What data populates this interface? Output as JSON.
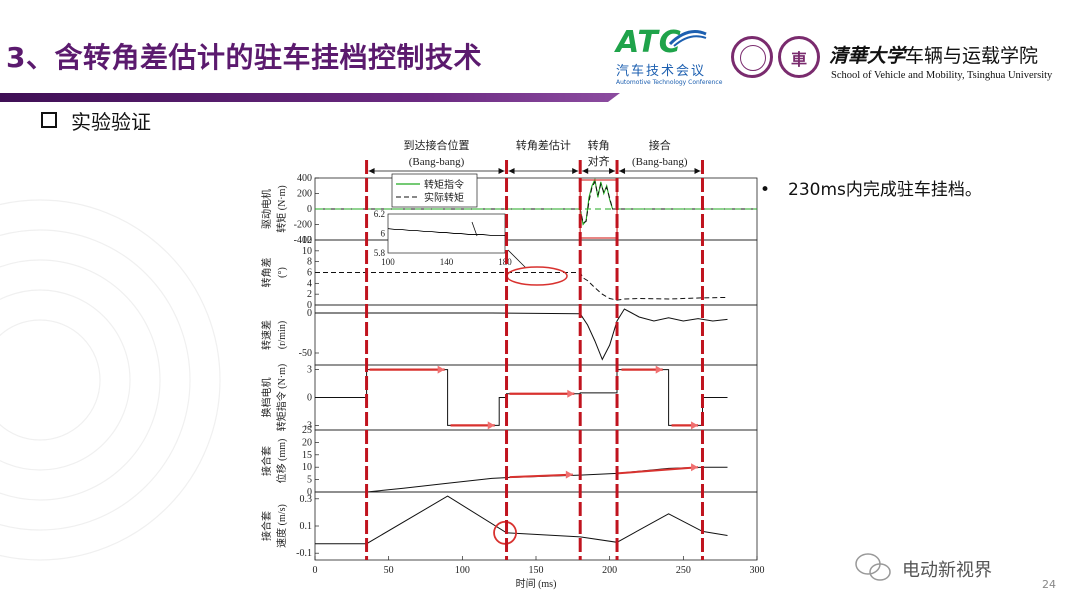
{
  "slide": {
    "title": "3、含转角差估计的驻车挂档控制技术",
    "section": "实验验证",
    "bullet": "230ms内完成驻车挂档。",
    "page_number": "24",
    "watermark": "电动新视界"
  },
  "logos": {
    "atc_name": "ATC",
    "atc_cn": "汽车技术会议",
    "atc_en": "Automotive Technology Conference",
    "tsinghua_calligraphy": "清華大学",
    "tsinghua_school_cn": "车辆与运载学院",
    "tsinghua_school_en": "School of Vehicle and Mobility, Tsinghua University",
    "seal_glyph": "車"
  },
  "colors": {
    "title": "#5b1a6e",
    "title_bar": "#4a1563",
    "phase_line": "#c0131e",
    "command_green": "#22aa22",
    "annotation_red": "#d8322f",
    "annotation_fill": "#f07070"
  },
  "chart_data": {
    "type": "line",
    "xlabel": "时间 (ms)",
    "xlim": [
      0,
      300
    ],
    "x_ticks": [
      0,
      50,
      100,
      150,
      200,
      250,
      300
    ],
    "phase_boundaries": [
      35,
      130,
      180,
      205,
      263
    ],
    "phases": [
      {
        "label": "到达接合位置",
        "sub": "(Bang-bang)",
        "start": 35,
        "end": 130
      },
      {
        "label": "转角差估计",
        "sub": "",
        "start": 130,
        "end": 180
      },
      {
        "label": "转角",
        "sub": "对齐",
        "start": 180,
        "end": 205
      },
      {
        "label": "接合",
        "sub": "(Bang-bang)",
        "start": 205,
        "end": 263
      }
    ],
    "subplots": [
      {
        "name": "drive-torque",
        "ylabel": [
          "驱动电机",
          "转矩 (N·m)"
        ],
        "ylim": [
          -400,
          400
        ],
        "yticks": [
          {
            "v": 400,
            "t": "400"
          },
          {
            "v": 200,
            "t": "200"
          },
          {
            "v": 0,
            "t": "0"
          },
          {
            "v": -200,
            "t": "-200"
          },
          {
            "v": -400,
            "t": "-400"
          }
        ],
        "legend": [
          {
            "name": "转矩指令",
            "style": "solid-green"
          },
          {
            "name": "实际转矩",
            "style": "dashed-black"
          }
        ],
        "series": [
          {
            "name": "转矩指令",
            "x": [
              0,
              180,
              182,
              184,
              186,
              188,
              190,
              192,
              194,
              196,
              198,
              200,
              202,
              205,
              300
            ],
            "y": [
              0,
              0,
              -200,
              -150,
              150,
              300,
              380,
              150,
              350,
              200,
              300,
              120,
              0,
              0,
              0
            ]
          },
          {
            "name": "实际转矩",
            "x": [
              0,
              180,
              182,
              184,
              186,
              188,
              190,
              192,
              194,
              196,
              198,
              200,
              202,
              205,
              300
            ],
            "y": [
              0,
              0,
              -180,
              -160,
              100,
              280,
              350,
              180,
              320,
              220,
              280,
              140,
              0,
              0,
              0
            ]
          }
        ]
      },
      {
        "name": "angle-diff",
        "ylabel": [
          "转角差",
          "(°)"
        ],
        "ylim": [
          0,
          12
        ],
        "yticks": [
          {
            "v": 12,
            "t": "12"
          },
          {
            "v": 10,
            "t": "10"
          },
          {
            "v": 8,
            "t": "8"
          },
          {
            "v": 6,
            "t": "6"
          },
          {
            "v": 4,
            "t": "4"
          },
          {
            "v": 2,
            "t": "2"
          },
          {
            "v": 0,
            "t": "0"
          }
        ],
        "series": [
          {
            "name": "转角差",
            "x": [
              0,
              180,
              182,
              185,
              190,
              195,
              200,
              205,
              210,
              220,
              240,
              260,
              280
            ],
            "y": [
              6,
              6,
              5,
              4.5,
              3.2,
              2,
              1.2,
              0.9,
              1.1,
              1.2,
              1.1,
              1.3,
              1.4
            ]
          }
        ],
        "inset": {
          "xlim": [
            100,
            180
          ],
          "ylim": [
            5.8,
            6.2
          ],
          "x_ticks": [
            {
              "v": 100,
              "t": "100"
            },
            {
              "v": 140,
              "t": "140"
            },
            {
              "v": 180,
              "t": "180"
            }
          ],
          "y_ticks": [
            {
              "v": 6.2,
              "t": "6.2"
            },
            {
              "v": 6,
              "t": "6"
            },
            {
              "v": 5.8,
              "t": "5.8"
            }
          ],
          "x": [
            100,
            105,
            110,
            115,
            120,
            125,
            130,
            135,
            140,
            145,
            150,
            155,
            160,
            165,
            170,
            175,
            180
          ],
          "y": [
            6.05,
            6.04,
            6.04,
            6.03,
            6.03,
            6.02,
            6.02,
            6.01,
            6.01,
            6.0,
            6.0,
            5.99,
            5.99,
            5.99,
            5.98,
            5.98,
            5.98
          ]
        }
      },
      {
        "name": "speed-diff",
        "ylabel": [
          "转速差",
          "(r/min)"
        ],
        "ylim": [
          -65,
          10
        ],
        "yticks": [
          {
            "v": 0,
            "t": "0"
          },
          {
            "v": -50,
            "t": "-50"
          }
        ],
        "series": [
          {
            "name": "转速差",
            "x": [
              0,
              60,
              120,
              180,
              185,
              190,
              195,
              200,
              205,
              210,
              215,
              220,
              230,
              240,
              250,
              260,
              270,
              280
            ],
            "y": [
              0,
              0,
              0,
              -1,
              -15,
              -35,
              -58,
              -40,
              -10,
              5,
              0,
              -5,
              -10,
              -6,
              -10,
              -7,
              -10,
              -8
            ]
          }
        ]
      },
      {
        "name": "shift-torque",
        "ylabel": [
          "换档电机",
          "转矩指令 (N·m)"
        ],
        "ylim": [
          -3.5,
          3.5
        ],
        "yticks": [
          {
            "v": 3,
            "t": "3"
          },
          {
            "v": 0,
            "t": "0"
          },
          {
            "v": -3,
            "t": "-3"
          }
        ],
        "series": [
          {
            "name": "换档电机转矩指令",
            "x": [
              0,
              35,
              35,
              90,
              90,
              125,
              125,
              130,
              130,
              180,
              180,
              205,
              205,
              240,
              240,
              263,
              263,
              280
            ],
            "y": [
              0,
              0,
              3,
              3,
              -3,
              -3,
              0,
              0,
              0.4,
              0.4,
              0.5,
              0.5,
              3,
              3,
              -3,
              -3,
              0,
              0
            ]
          }
        ]
      },
      {
        "name": "sleeve-displacement",
        "ylabel": [
          "接合套",
          "位移 (mm)"
        ],
        "ylim": [
          0,
          25
        ],
        "yticks": [
          {
            "v": 25,
            "t": "25"
          },
          {
            "v": 20,
            "t": "20"
          },
          {
            "v": 15,
            "t": "15"
          },
          {
            "v": 10,
            "t": "10"
          },
          {
            "v": 5,
            "t": "5"
          },
          {
            "v": 0,
            "t": "0"
          }
        ],
        "series": [
          {
            "name": "接合套位移",
            "x": [
              0,
              35,
              60,
              90,
              120,
              130,
              180,
              205,
              240,
              263,
              280
            ],
            "y": [
              0,
              0,
              1.5,
              3.5,
              5.5,
              5.8,
              6.8,
              7.5,
              9.5,
              10,
              10
            ]
          }
        ]
      },
      {
        "name": "sleeve-speed",
        "ylabel": [
          "接合套",
          "速度 (m/s)"
        ],
        "ylim": [
          -0.15,
          0.35
        ],
        "yticks": [
          {
            "v": 0.3,
            "t": "0.3"
          },
          {
            "v": 0.1,
            "t": "0.1"
          },
          {
            "v": -0.1,
            "t": "-0.1"
          }
        ],
        "series": [
          {
            "name": "接合套速度",
            "x": [
              0,
              35,
              90,
              130,
              180,
              205,
              240,
              263,
              280
            ],
            "y": [
              -0.03,
              -0.03,
              0.32,
              0.05,
              0.02,
              -0.02,
              0.19,
              0.06,
              0.03
            ]
          }
        ]
      }
    ]
  }
}
